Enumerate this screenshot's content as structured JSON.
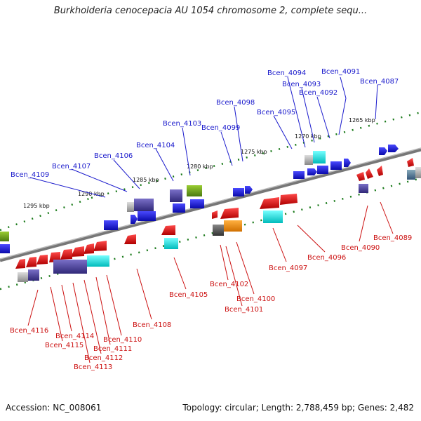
{
  "title": "Burkholderia cenocepacia AU 1054 chromosome 2, complete sequ...",
  "accession": "Accession: NC_008061",
  "summary": "Topology: circular; Length: 2,788,459 bp; Genes: 2,482",
  "scale_labels": [
    "1265 kbp",
    "1270 kbp",
    "1275 kbp",
    "1280 kbp",
    "1285 kbp",
    "1290 kbp",
    "1295 kbp"
  ],
  "top_genes": [
    "Bcen_4094",
    "Bcen_4091",
    "Bcen_4093",
    "Bcen_4087",
    "Bcen_4092",
    "Bcen_4098",
    "Bcen_4095",
    "Bcen_4103",
    "Bcen_4099",
    "Bcen_4104",
    "Bcen_4106",
    "Bcen_4107",
    "Bcen_4109"
  ],
  "bottom_genes": [
    "Bcen_4089",
    "Bcen_4090",
    "Bcen_4096",
    "Bcen_4097",
    "Bcen_4100",
    "Bcen_4102",
    "Bcen_4101",
    "Bcen_4105",
    "Bcen_4108",
    "Bcen_4116",
    "Bcen_4114",
    "Bcen_4115",
    "Bcen_4110",
    "Bcen_4111",
    "Bcen_4112",
    "Bcen_4113"
  ],
  "colors": {
    "forward": "#1a1ae0",
    "reverse": "#e01a1a",
    "backbone": "#888888",
    "tick": "#1a7a1a",
    "label_blue": "#1a1acc",
    "label_red": "#cc1111"
  }
}
